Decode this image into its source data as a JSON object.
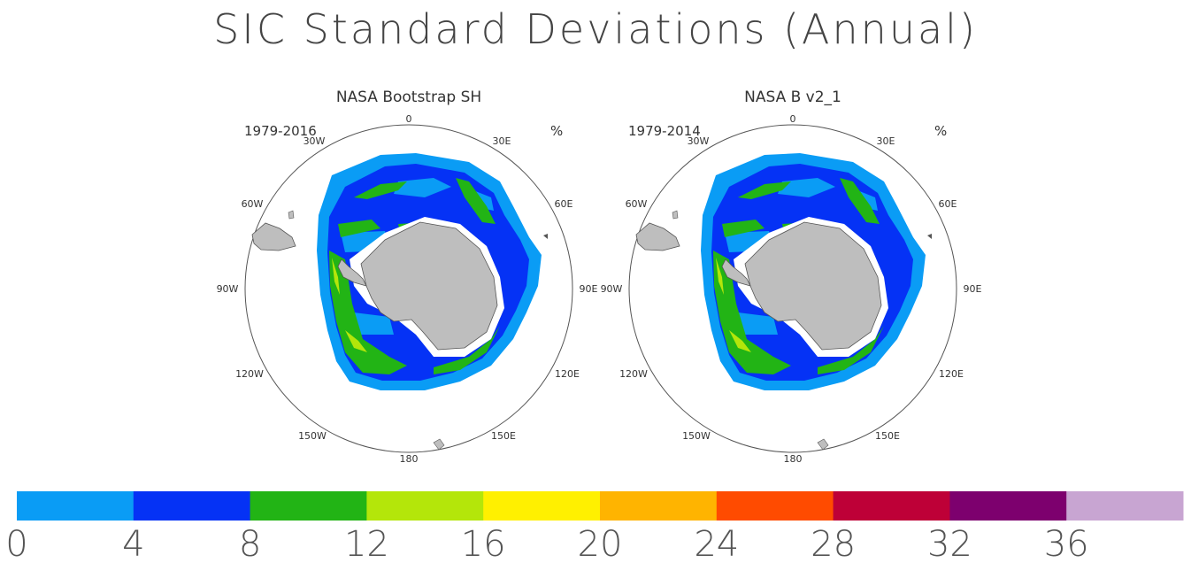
{
  "title": "SIC Standard Deviations (Annual)",
  "panels": [
    {
      "title": "NASA Bootstrap SH",
      "period": "1979-2016",
      "unit": "%",
      "longitude_labels": [
        "0",
        "30E",
        "60E",
        "90E",
        "120E",
        "150E",
        "180",
        "150W",
        "120W",
        "90W",
        "60W",
        "30W"
      ]
    },
    {
      "title": "NASA B v2_1",
      "period": "1979-2014",
      "unit": "%",
      "longitude_labels": [
        "0",
        "30E",
        "60E",
        "90E",
        "120E",
        "150E",
        "180",
        "150W",
        "120W",
        "90W",
        "60W",
        "30W"
      ]
    }
  ],
  "colorbar": {
    "colors": [
      "#0a9cf5",
      "#0532f5",
      "#22b415",
      "#b4e60a",
      "#fff000",
      "#ffb400",
      "#ff4b00",
      "#be0037",
      "#7d006e",
      "#c8a5d2"
    ],
    "labels": [
      "0",
      "4",
      "8",
      "12",
      "16",
      "20",
      "24",
      "28",
      "32",
      "36"
    ]
  },
  "colors": {
    "land": "#bebebe",
    "ice_shelf": "#ffffff",
    "outline": "#555555"
  }
}
